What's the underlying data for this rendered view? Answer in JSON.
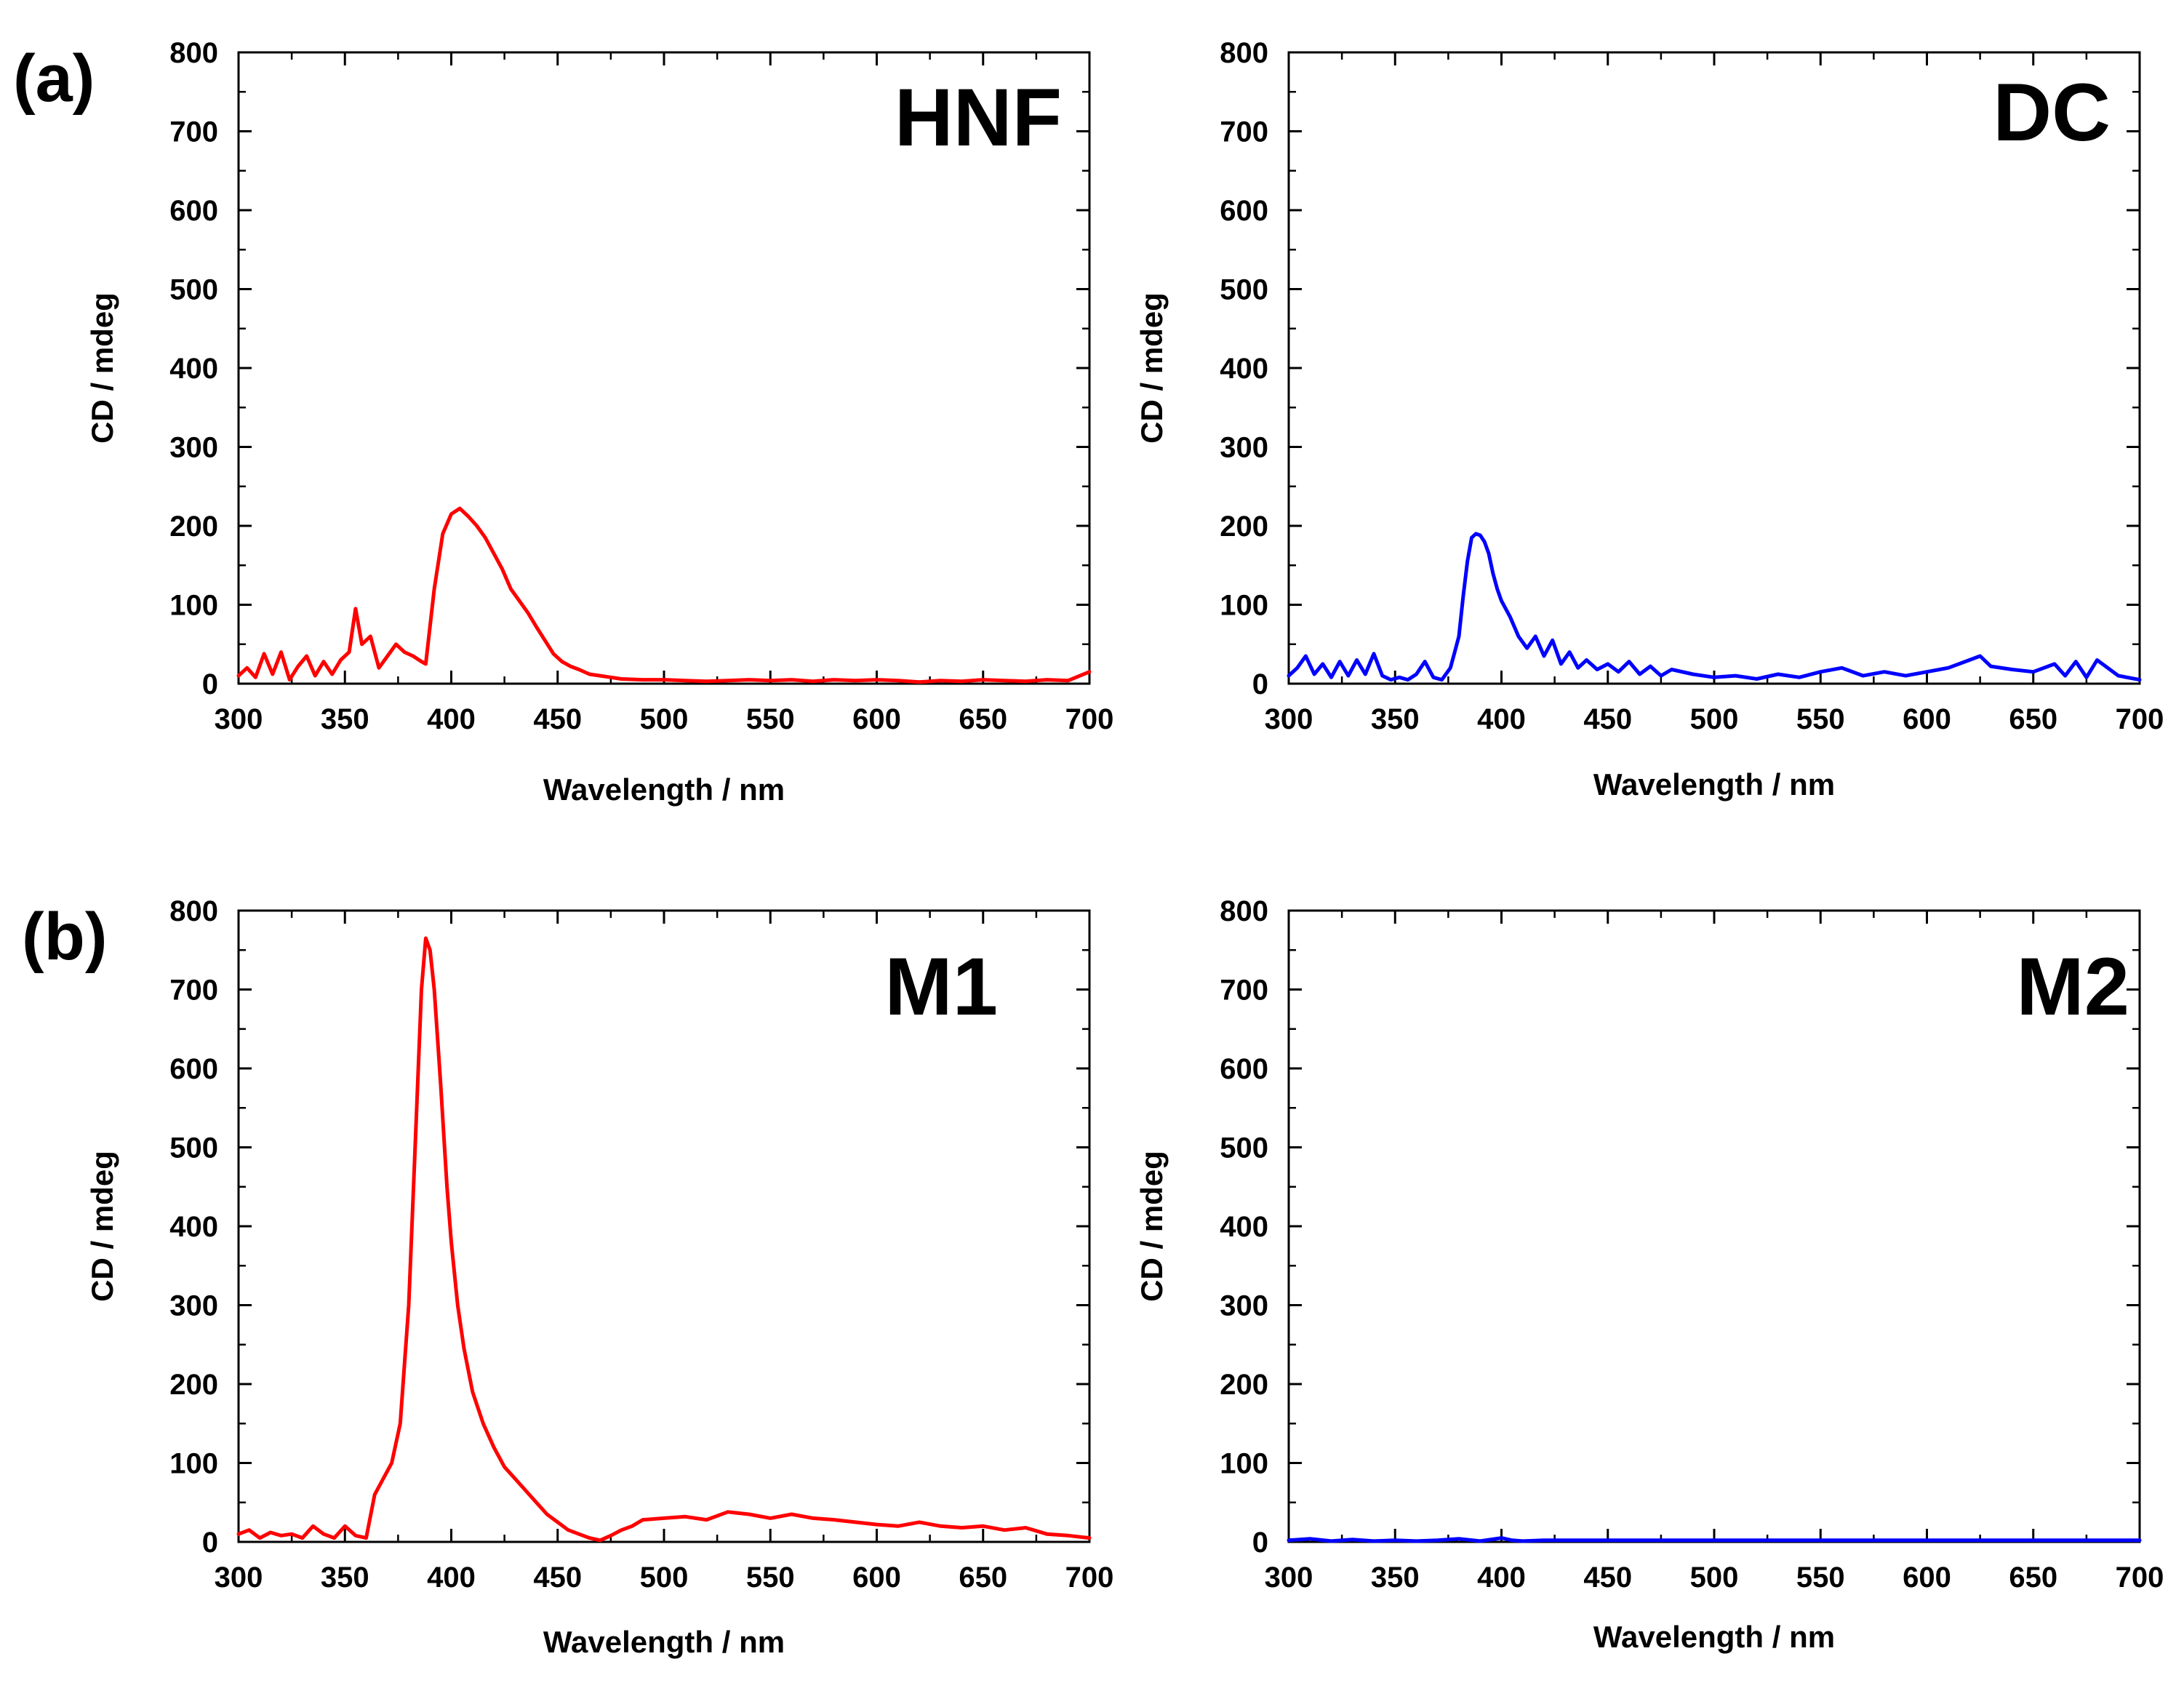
{
  "panel_labels": [
    "(a)",
    "(b)"
  ],
  "colors": {
    "red": "#ff0000",
    "blue": "#0000ff",
    "axis": "#000000"
  },
  "chart_data": [
    {
      "type": "line",
      "panel": "(a)",
      "label": "HNF",
      "xlabel": "Wavelength / nm",
      "ylabel": "CD / mdeg",
      "xlim": [
        300,
        700
      ],
      "ylim": [
        0,
        800
      ],
      "xticks": [
        "300",
        "350",
        "400",
        "450",
        "500",
        "550",
        "600",
        "650",
        "700"
      ],
      "yticks": [
        "0",
        "100",
        "200",
        "300",
        "400",
        "500",
        "600",
        "700",
        "800"
      ],
      "series": [
        {
          "name": "HNF",
          "color": "#ff0000",
          "x": [
            300,
            304,
            308,
            312,
            316,
            320,
            324,
            328,
            332,
            336,
            340,
            344,
            348,
            352,
            355,
            358,
            362,
            366,
            370,
            374,
            378,
            382,
            386,
            388,
            392,
            396,
            400,
            404,
            408,
            412,
            416,
            420,
            424,
            428,
            432,
            436,
            440,
            444,
            448,
            452,
            456,
            460,
            465,
            470,
            475,
            480,
            490,
            500,
            510,
            520,
            530,
            540,
            550,
            560,
            570,
            580,
            590,
            600,
            610,
            620,
            630,
            640,
            650,
            660,
            670,
            680,
            690,
            700
          ],
          "values": [
            10,
            20,
            8,
            38,
            12,
            40,
            5,
            22,
            35,
            10,
            28,
            12,
            30,
            40,
            95,
            50,
            60,
            20,
            35,
            50,
            40,
            35,
            28,
            25,
            120,
            190,
            215,
            222,
            212,
            200,
            185,
            165,
            145,
            120,
            105,
            90,
            72,
            55,
            38,
            28,
            22,
            18,
            12,
            10,
            8,
            6,
            5,
            5,
            4,
            3,
            4,
            5,
            4,
            5,
            3,
            5,
            4,
            5,
            4,
            2,
            4,
            3,
            5,
            4,
            3,
            5,
            4,
            15
          ]
        }
      ]
    },
    {
      "type": "line",
      "panel": "(a)",
      "label": "DC",
      "xlabel": "Wavelength / nm",
      "ylabel": "CD / mdeg",
      "xlim": [
        300,
        700
      ],
      "ylim": [
        0,
        800
      ],
      "xticks": [
        "300",
        "350",
        "400",
        "450",
        "500",
        "550",
        "600",
        "650",
        "700"
      ],
      "yticks": [
        "0",
        "100",
        "200",
        "300",
        "400",
        "500",
        "600",
        "700",
        "800"
      ],
      "series": [
        {
          "name": "DC",
          "color": "#0000ff",
          "x": [
            300,
            304,
            308,
            312,
            316,
            320,
            324,
            328,
            332,
            336,
            340,
            344,
            348,
            352,
            356,
            360,
            364,
            368,
            372,
            376,
            378,
            380,
            382,
            384,
            386,
            388,
            390,
            392,
            394,
            396,
            398,
            400,
            404,
            408,
            412,
            416,
            420,
            424,
            428,
            432,
            436,
            440,
            445,
            450,
            455,
            460,
            465,
            470,
            475,
            480,
            490,
            500,
            510,
            520,
            530,
            540,
            550,
            560,
            570,
            580,
            590,
            600,
            610,
            620,
            625,
            630,
            640,
            650,
            660,
            665,
            670,
            675,
            680,
            690,
            700
          ],
          "values": [
            10,
            20,
            35,
            12,
            25,
            8,
            28,
            10,
            30,
            12,
            38,
            10,
            5,
            8,
            5,
            12,
            28,
            8,
            5,
            20,
            40,
            60,
            110,
            155,
            185,
            190,
            188,
            180,
            165,
            140,
            120,
            105,
            85,
            60,
            45,
            60,
            35,
            55,
            25,
            40,
            20,
            30,
            18,
            25,
            15,
            28,
            12,
            22,
            10,
            18,
            12,
            8,
            10,
            6,
            12,
            8,
            15,
            20,
            10,
            15,
            10,
            15,
            20,
            30,
            35,
            22,
            18,
            15,
            25,
            10,
            28,
            8,
            30,
            10,
            5
          ]
        }
      ]
    },
    {
      "type": "line",
      "panel": "(b)",
      "label": "M1",
      "xlabel": "Wavelength / nm",
      "ylabel": "CD / mdeg",
      "xlim": [
        300,
        700
      ],
      "ylim": [
        0,
        800
      ],
      "xticks": [
        "300",
        "350",
        "400",
        "450",
        "500",
        "550",
        "600",
        "650",
        "700"
      ],
      "yticks": [
        "0",
        "100",
        "200",
        "300",
        "400",
        "500",
        "600",
        "700",
        "800"
      ],
      "series": [
        {
          "name": "M1",
          "color": "#ff0000",
          "x": [
            300,
            305,
            310,
            315,
            320,
            325,
            330,
            335,
            340,
            345,
            350,
            355,
            360,
            364,
            368,
            372,
            376,
            380,
            383,
            386,
            388,
            390,
            392,
            395,
            398,
            400,
            403,
            406,
            410,
            415,
            420,
            425,
            430,
            435,
            440,
            445,
            450,
            455,
            460,
            465,
            470,
            475,
            480,
            485,
            490,
            500,
            510,
            520,
            530,
            540,
            550,
            560,
            570,
            580,
            590,
            600,
            610,
            620,
            630,
            640,
            650,
            660,
            670,
            680,
            690,
            700
          ],
          "values": [
            10,
            15,
            5,
            12,
            8,
            10,
            5,
            20,
            10,
            5,
            20,
            8,
            5,
            60,
            80,
            100,
            150,
            300,
            500,
            700,
            765,
            750,
            700,
            580,
            450,
            380,
            300,
            245,
            190,
            150,
            120,
            95,
            80,
            65,
            50,
            35,
            25,
            15,
            10,
            5,
            2,
            8,
            15,
            20,
            28,
            30,
            32,
            28,
            38,
            35,
            30,
            35,
            30,
            28,
            25,
            22,
            20,
            25,
            20,
            18,
            20,
            15,
            18,
            10,
            8,
            5
          ]
        }
      ]
    },
    {
      "type": "line",
      "panel": "(b)",
      "label": "M2",
      "xlabel": "Wavelength / nm",
      "ylabel": "CD / mdeg",
      "xlim": [
        300,
        700
      ],
      "ylim": [
        0,
        800
      ],
      "xticks": [
        "300",
        "350",
        "400",
        "450",
        "500",
        "550",
        "600",
        "650",
        "700"
      ],
      "yticks": [
        "0",
        "100",
        "200",
        "300",
        "400",
        "500",
        "600",
        "700",
        "800"
      ],
      "series": [
        {
          "name": "M2",
          "color": "#0000ff",
          "x": [
            300,
            310,
            320,
            330,
            340,
            350,
            360,
            370,
            380,
            390,
            400,
            405,
            410,
            420,
            450,
            500,
            550,
            600,
            650,
            700
          ],
          "values": [
            2,
            4,
            1,
            3,
            1,
            2,
            1,
            2,
            4,
            1,
            5,
            2,
            1,
            2,
            2,
            2,
            2,
            2,
            2,
            2
          ]
        }
      ]
    }
  ]
}
